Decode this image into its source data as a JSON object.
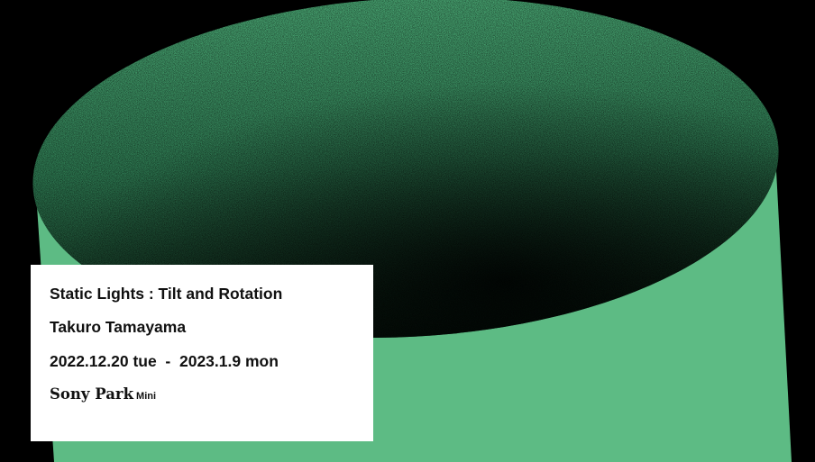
{
  "poster": {
    "title": "Static Lights : Tilt and Rotation",
    "artist": "Takuro Tamayama",
    "dates": "2022.12.20 tue  -  2023.1.9 mon",
    "venue_name": "Sony Park",
    "venue_suffix": "Mini"
  },
  "colors": {
    "background": "#000000",
    "cylinder_side": "#5dbb84",
    "cylinder_top_light": "#3f9a68",
    "cylinder_top_dark": "#0b1a12",
    "card": "#ffffff",
    "text": "#111111"
  }
}
